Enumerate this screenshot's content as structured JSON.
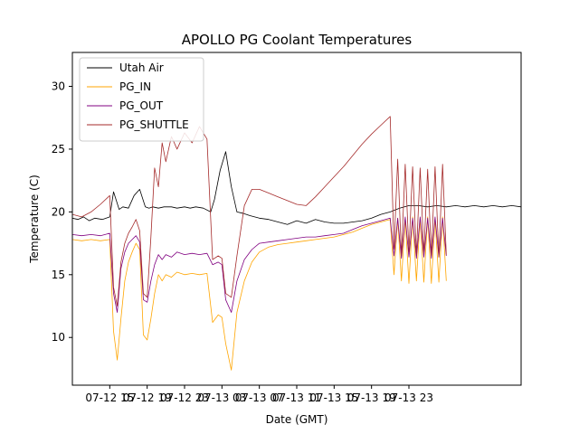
{
  "chart_data": {
    "type": "line",
    "title": "APOLLO PG Coolant Temperatures",
    "xlabel": "Date (GMT)",
    "ylabel": "Temperature (C)",
    "xlim": [
      0,
      24
    ],
    "ylim": [
      6.2,
      32.7
    ],
    "x_unit": "hours since 07-12 11:00 GMT",
    "xticks": [
      {
        "x": 2,
        "label": "07-12 15"
      },
      {
        "x": 4,
        "label": "07-12 19"
      },
      {
        "x": 6,
        "label": "07-12 23"
      },
      {
        "x": 8,
        "label": "07-13 03"
      },
      {
        "x": 10,
        "label": "07-13 07"
      },
      {
        "x": 12,
        "label": "07-13 11"
      },
      {
        "x": 14,
        "label": "07-13 15"
      },
      {
        "x": 16,
        "label": "07-13 19"
      },
      {
        "x": 18,
        "label": "07-13 23"
      }
    ],
    "yticks": [
      10,
      15,
      20,
      25,
      30
    ],
    "legend_position": "top-left",
    "series": [
      {
        "name": "Utah Air",
        "color": "#000000",
        "x": [
          0,
          0.3,
          0.6,
          0.9,
          1.2,
          1.6,
          2.0,
          2.2,
          2.5,
          2.7,
          3.0,
          3.3,
          3.6,
          3.9,
          4.1,
          4.3,
          4.6,
          4.9,
          5.3,
          5.6,
          6.0,
          6.3,
          6.6,
          7.0,
          7.4,
          7.6,
          7.9,
          8.2,
          8.5,
          8.8,
          9.1,
          9.5,
          10.0,
          10.5,
          11.0,
          11.5,
          12.0,
          12.5,
          13.0,
          13.5,
          14.0,
          14.5,
          15.0,
          15.5,
          16.0,
          16.5,
          17.0,
          17.5,
          18.0,
          18.5,
          19.0,
          19.5,
          20.0,
          20.5,
          21.0,
          21.5,
          22.0,
          22.5,
          23.0,
          23.5,
          24.0
        ],
        "values": [
          19.5,
          19.4,
          19.6,
          19.3,
          19.5,
          19.4,
          19.6,
          21.6,
          20.2,
          20.4,
          20.3,
          21.3,
          21.8,
          20.4,
          20.3,
          20.4,
          20.3,
          20.4,
          20.4,
          20.3,
          20.4,
          20.3,
          20.4,
          20.3,
          20.0,
          21.0,
          23.3,
          24.8,
          22.0,
          20.0,
          19.9,
          19.7,
          19.5,
          19.4,
          19.2,
          19.0,
          19.3,
          19.1,
          19.4,
          19.2,
          19.1,
          19.1,
          19.2,
          19.3,
          19.5,
          19.8,
          20.0,
          20.3,
          20.5,
          20.5,
          20.4,
          20.5,
          20.4,
          20.5,
          20.4,
          20.5,
          20.4,
          20.5,
          20.4,
          20.5,
          20.4
        ]
      },
      {
        "name": "PG_IN",
        "color": "#ffa500",
        "x": [
          0,
          0.5,
          1.0,
          1.5,
          2.0,
          2.2,
          2.4,
          2.6,
          2.8,
          3.0,
          3.2,
          3.4,
          3.6,
          3.8,
          4.0,
          4.2,
          4.4,
          4.6,
          4.8,
          5.0,
          5.3,
          5.6,
          6.0,
          6.4,
          6.8,
          7.2,
          7.5,
          7.8,
          8.0,
          8.2,
          8.5,
          8.8,
          9.2,
          9.6,
          10.0,
          10.5,
          11.0,
          11.5,
          12.0,
          12.5,
          13.0,
          13.5,
          14.0,
          14.5,
          15.0,
          15.5,
          16.0,
          16.5,
          17.0,
          17.2,
          17.4,
          17.6,
          17.8,
          18.0,
          18.2,
          18.4,
          18.6,
          18.8,
          19.0,
          19.2,
          19.4,
          19.6,
          19.8,
          20.0
        ],
        "values": [
          17.8,
          17.7,
          17.8,
          17.7,
          17.8,
          10.5,
          8.2,
          11.5,
          14.5,
          16.0,
          16.8,
          17.5,
          17.0,
          10.2,
          9.8,
          11.5,
          13.5,
          15.0,
          14.5,
          15.0,
          14.8,
          15.2,
          15.0,
          15.1,
          15.0,
          15.1,
          11.2,
          11.8,
          11.6,
          9.5,
          7.4,
          12.0,
          14.5,
          16.0,
          16.8,
          17.2,
          17.4,
          17.5,
          17.6,
          17.7,
          17.8,
          17.9,
          18.0,
          18.2,
          18.4,
          18.7,
          19.0,
          19.2,
          19.4,
          15.0,
          19.5,
          14.5,
          19.5,
          14.3,
          19.6,
          14.5,
          19.5,
          14.4,
          19.6,
          14.3,
          19.5,
          14.4,
          19.6,
          14.5
        ]
      },
      {
        "name": "PG_OUT",
        "color": "#800080",
        "x": [
          0,
          0.5,
          1.0,
          1.5,
          2.0,
          2.2,
          2.4,
          2.6,
          2.8,
          3.0,
          3.2,
          3.4,
          3.6,
          3.8,
          4.0,
          4.2,
          4.4,
          4.6,
          4.8,
          5.0,
          5.3,
          5.6,
          6.0,
          6.4,
          6.8,
          7.2,
          7.5,
          7.8,
          8.0,
          8.2,
          8.5,
          8.8,
          9.2,
          9.6,
          10.0,
          10.5,
          11.0,
          11.5,
          12.0,
          12.5,
          13.0,
          13.5,
          14.0,
          14.5,
          15.0,
          15.5,
          16.0,
          16.5,
          17.0,
          17.2,
          17.4,
          17.6,
          17.8,
          18.0,
          18.2,
          18.4,
          18.6,
          18.8,
          19.0,
          19.2,
          19.4,
          19.6,
          19.8,
          20.0
        ],
        "values": [
          18.2,
          18.1,
          18.2,
          18.1,
          18.3,
          13.5,
          12.0,
          15.5,
          16.8,
          17.5,
          17.8,
          18.1,
          17.6,
          13.0,
          12.8,
          14.5,
          15.8,
          16.6,
          16.2,
          16.6,
          16.4,
          16.8,
          16.6,
          16.7,
          16.6,
          16.7,
          15.8,
          16.0,
          15.8,
          13.0,
          12.0,
          14.5,
          16.2,
          17.0,
          17.5,
          17.6,
          17.7,
          17.8,
          17.9,
          18.0,
          18.0,
          18.1,
          18.2,
          18.3,
          18.6,
          18.9,
          19.1,
          19.3,
          19.5,
          16.5,
          19.5,
          16.3,
          19.6,
          16.4,
          19.5,
          16.3,
          19.6,
          16.4,
          19.5,
          16.3,
          19.6,
          16.4,
          19.5,
          16.5
        ]
      },
      {
        "name": "PG_SHUTTLE",
        "color": "#a52a2a",
        "x": [
          0,
          0.5,
          1.0,
          1.5,
          2.0,
          2.2,
          2.4,
          2.6,
          2.8,
          3.0,
          3.2,
          3.4,
          3.6,
          3.8,
          4.0,
          4.2,
          4.4,
          4.6,
          4.8,
          5.0,
          5.3,
          5.6,
          6.0,
          6.4,
          6.8,
          7.2,
          7.5,
          7.8,
          8.0,
          8.2,
          8.5,
          8.8,
          9.2,
          9.6,
          10.0,
          10.5,
          11.0,
          11.5,
          12.0,
          12.5,
          13.0,
          13.5,
          14.0,
          14.5,
          15.0,
          15.5,
          16.0,
          16.5,
          17.0,
          17.2,
          17.4,
          17.6,
          17.8,
          18.0,
          18.2,
          18.4,
          18.6,
          18.8,
          19.0,
          19.2,
          19.4,
          19.6,
          19.8,
          20.0
        ],
        "values": [
          19.8,
          19.6,
          20.0,
          20.6,
          21.3,
          14.0,
          12.5,
          16.0,
          17.5,
          18.3,
          18.8,
          19.4,
          18.5,
          13.5,
          13.2,
          18.0,
          23.5,
          22.0,
          25.5,
          24.0,
          26.0,
          25.0,
          26.3,
          25.5,
          26.8,
          25.8,
          16.2,
          16.5,
          16.3,
          13.5,
          13.2,
          16.5,
          20.5,
          21.8,
          21.8,
          21.5,
          21.2,
          20.9,
          20.6,
          20.5,
          21.2,
          22.0,
          22.8,
          23.6,
          24.5,
          25.4,
          26.2,
          26.9,
          27.6,
          17.0,
          24.2,
          16.5,
          23.8,
          16.8,
          23.6,
          16.6,
          23.5,
          16.7,
          23.4,
          16.5,
          23.6,
          16.4,
          23.8,
          16.6
        ]
      }
    ]
  }
}
